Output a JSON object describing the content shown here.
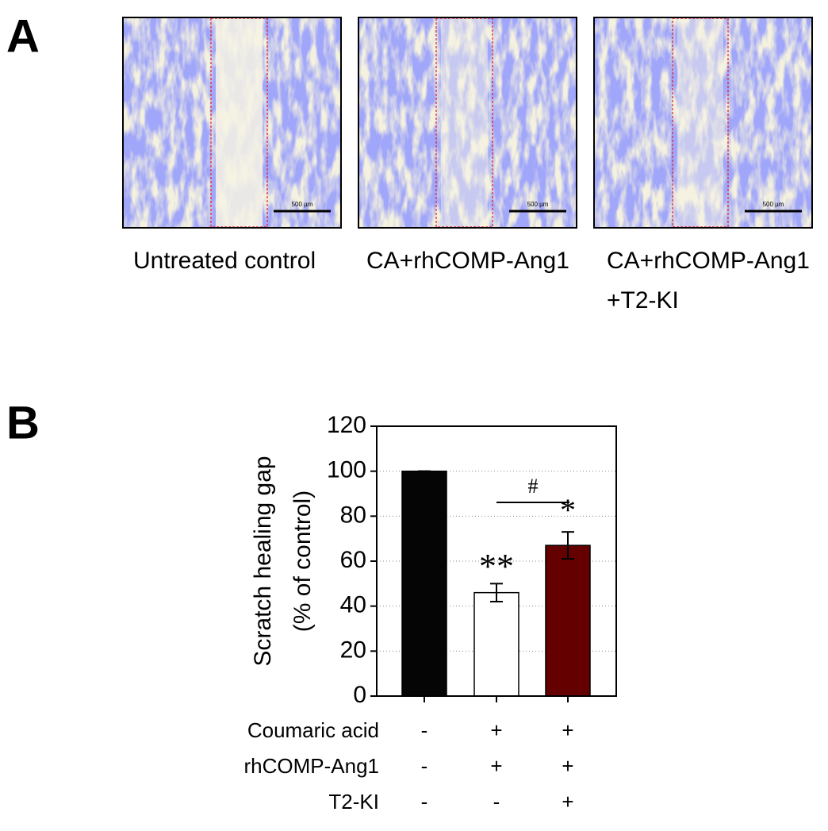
{
  "panel_a": {
    "label": "A",
    "images": [
      {
        "caption": [
          "Untreated control"
        ],
        "scale_bar": "500 µm"
      },
      {
        "caption": [
          "CA+rhCOMP-Ang1"
        ],
        "scale_bar": "500 µm"
      },
      {
        "caption": [
          "CA+rhCOMP-Ang1",
          "+T2-KI"
        ],
        "scale_bar": "500 µm"
      }
    ]
  },
  "chart_data": {
    "label": "B",
    "type": "bar",
    "ylabel": [
      "Scratch healing gap",
      "(% of control)"
    ],
    "categories": [
      null,
      null,
      null
    ],
    "values": [
      100,
      46,
      67
    ],
    "errors": [
      0,
      4,
      6
    ],
    "colors": [
      "#050505",
      "#ffffff",
      "#650000"
    ],
    "ylim": [
      0,
      120
    ],
    "yticks": [
      0,
      20,
      40,
      60,
      80,
      100,
      120
    ],
    "grid": true,
    "annotations": [
      "**",
      "*",
      "#"
    ],
    "treatment_table": [
      {
        "name": "Coumaric acid",
        "marks": [
          "-",
          "+",
          "+"
        ]
      },
      {
        "name": "rhCOMP-Ang1",
        "marks": [
          "-",
          "+",
          "+"
        ]
      },
      {
        "name": "T2-KI",
        "marks": [
          "-",
          "-",
          "+"
        ]
      }
    ]
  }
}
